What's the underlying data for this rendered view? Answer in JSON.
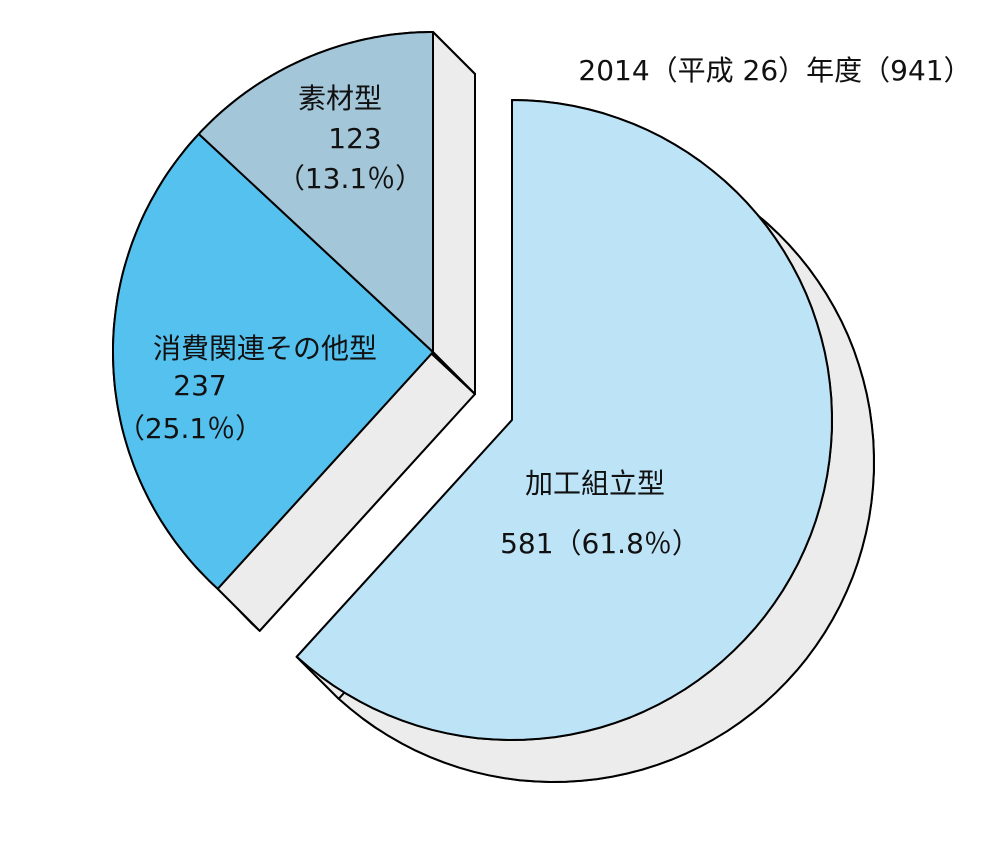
{
  "chart_data": {
    "type": "pie",
    "title": "2014（平成 26）年度（941）",
    "categories": [
      "加工組立型",
      "消費関連その他型",
      "素材型"
    ],
    "values": [
      581,
      237,
      123
    ],
    "shares": [
      {
        "value": 61.8,
        "label": "（61.8％）"
      },
      {
        "value": 25.1,
        "label": "（25.1％）"
      },
      {
        "value": 13.1,
        "label": "（13.1％）"
      }
    ],
    "colors": [
      "#bde3f7",
      "#55c1ef",
      "#a3c6d9"
    ]
  }
}
